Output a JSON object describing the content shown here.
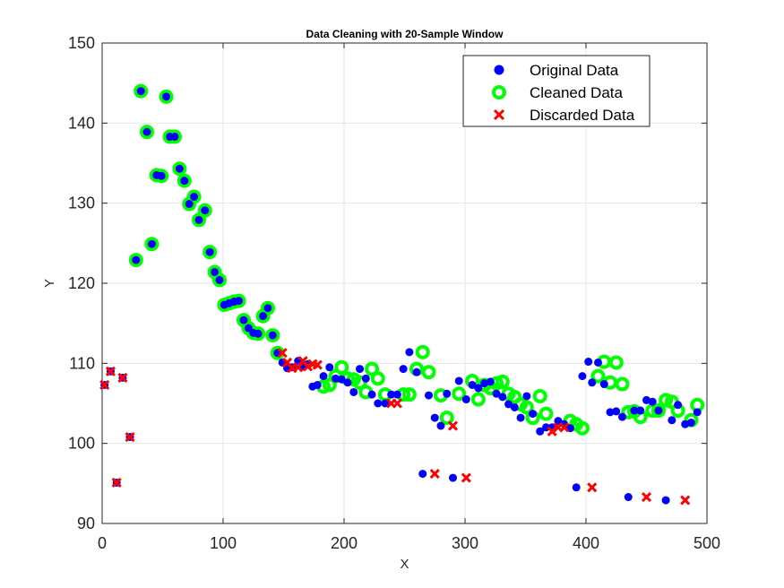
{
  "chart_data": {
    "type": "scatter",
    "title": "Data Cleaning with 20-Sample Window",
    "xlabel": "X",
    "ylabel": "Y",
    "xlim": [
      0,
      500
    ],
    "ylim": [
      90,
      150
    ],
    "xticks": [
      0,
      100,
      200,
      300,
      400,
      500
    ],
    "yticks": [
      90,
      100,
      110,
      120,
      130,
      140,
      150
    ],
    "grid": true,
    "legend_position": "top-right",
    "colors": {
      "original": "#0000ff",
      "cleaned": "#00ff00",
      "discarded": "#ff0000",
      "grid": "#e6e6e6",
      "axis": "#262626"
    },
    "series": [
      {
        "name": "Original Data",
        "marker": "filled-circle",
        "x": [
          2,
          7,
          12,
          17,
          23,
          28,
          32,
          37,
          41,
          45,
          49,
          53,
          56,
          60,
          64,
          68,
          72,
          76,
          80,
          85,
          89,
          93,
          97,
          101,
          105,
          109,
          113,
          117,
          121,
          125,
          129,
          133,
          137,
          141,
          145,
          149,
          153,
          157,
          162,
          166,
          170,
          174,
          178,
          183,
          188,
          193,
          198,
          203,
          208,
          213,
          218,
          223,
          228,
          234,
          239,
          244,
          249,
          254,
          260,
          265,
          270,
          275,
          280,
          285,
          290,
          295,
          301,
          306,
          311,
          316,
          321,
          326,
          331,
          336,
          341,
          346,
          351,
          356,
          362,
          367,
          372,
          377,
          382,
          387,
          392,
          397,
          402,
          405,
          410,
          415,
          420,
          425,
          430,
          435,
          440,
          445,
          450,
          455,
          460,
          466,
          471,
          476,
          482,
          487,
          492
        ],
        "y": [
          107.3,
          109.0,
          95.1,
          108.2,
          100.8,
          122.9,
          144.0,
          138.9,
          124.9,
          133.5,
          133.4,
          143.3,
          138.3,
          138.3,
          134.3,
          132.8,
          129.9,
          130.8,
          127.9,
          129.1,
          123.9,
          121.4,
          120.4,
          117.3,
          117.5,
          117.7,
          117.8,
          115.4,
          114.4,
          113.8,
          113.7,
          115.9,
          116.9,
          113.5,
          111.3,
          110.1,
          109.4,
          109.5,
          110.3,
          109.6,
          109.9,
          107.1,
          107.3,
          108.4,
          109.5,
          108.1,
          108.0,
          107.6,
          106.4,
          109.3,
          108.1,
          106.1,
          105.0,
          105.0,
          106.1,
          106.1,
          109.3,
          111.4,
          108.9,
          96.2,
          106.0,
          103.2,
          102.2,
          106.2,
          95.7,
          107.8,
          105.5,
          107.3,
          106.9,
          107.5,
          107.7,
          106.2,
          105.8,
          104.9,
          104.5,
          103.2,
          105.9,
          103.7,
          101.5,
          102.0,
          102.0,
          102.8,
          102.4,
          101.9,
          94.5,
          108.4,
          110.2,
          107.6,
          110.1,
          107.4,
          103.9,
          104.0,
          103.3,
          93.3,
          104.1,
          104.1,
          105.4,
          105.2,
          104.1,
          92.9,
          102.9,
          104.8,
          102.4,
          102.6,
          103.9
        ]
      },
      {
        "name": "Cleaned Data",
        "marker": "open-circle",
        "x": [
          28,
          32,
          37,
          41,
          45,
          49,
          53,
          56,
          60,
          64,
          68,
          72,
          76,
          80,
          85,
          89,
          93,
          97,
          101,
          105,
          109,
          113,
          117,
          121,
          125,
          129,
          133,
          137,
          141,
          145,
          183,
          188,
          193,
          198,
          203,
          208,
          213,
          218,
          223,
          228,
          234,
          249,
          254,
          260,
          265,
          270,
          280,
          285,
          295,
          306,
          311,
          316,
          321,
          326,
          331,
          336,
          341,
          346,
          351,
          356,
          362,
          367,
          387,
          392,
          397,
          410,
          415,
          420,
          425,
          430,
          435,
          440,
          445,
          455,
          460,
          466,
          471,
          476,
          487,
          492
        ],
        "y": [
          122.9,
          144.0,
          138.9,
          124.9,
          133.5,
          133.4,
          143.3,
          138.3,
          138.3,
          134.3,
          132.8,
          129.9,
          130.8,
          127.9,
          129.1,
          123.9,
          121.4,
          120.4,
          117.3,
          117.5,
          117.7,
          117.8,
          115.4,
          114.4,
          113.8,
          113.7,
          115.9,
          116.9,
          113.5,
          111.3,
          107.1,
          107.3,
          108.4,
          109.5,
          108.1,
          108.0,
          107.6,
          106.4,
          109.3,
          108.1,
          106.1,
          106.1,
          106.1,
          109.3,
          111.4,
          108.9,
          106.0,
          103.2,
          106.2,
          107.8,
          105.5,
          107.3,
          106.9,
          107.5,
          107.7,
          106.2,
          105.8,
          104.9,
          104.5,
          103.2,
          105.9,
          103.7,
          102.8,
          102.4,
          101.9,
          108.4,
          110.2,
          107.6,
          110.1,
          107.4,
          103.9,
          104.0,
          103.3,
          104.1,
          104.1,
          105.4,
          105.2,
          104.1,
          102.9,
          104.8
        ]
      },
      {
        "name": "Discarded Data",
        "marker": "x",
        "x": [
          2,
          7,
          12,
          17,
          23,
          149,
          153,
          157,
          162,
          166,
          170,
          174,
          178,
          239,
          244,
          275,
          290,
          301,
          372,
          377,
          382,
          405,
          450,
          482
        ],
        "y": [
          107.3,
          109.0,
          95.1,
          108.2,
          100.8,
          111.3,
          110.1,
          109.4,
          109.5,
          110.3,
          109.6,
          109.9,
          109.8,
          105.0,
          105.0,
          96.2,
          102.2,
          95.7,
          101.5,
          102.0,
          102.0,
          94.5,
          93.3,
          92.9
        ]
      }
    ]
  }
}
